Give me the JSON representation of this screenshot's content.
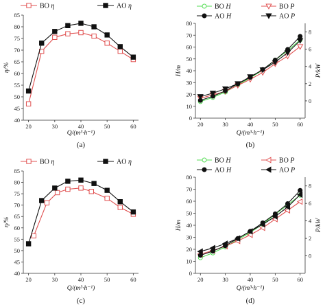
{
  "chart_data": [
    {
      "type": "line",
      "panel": "a",
      "caption": "(a)",
      "xlabel": "Q/(m³·h⁻¹)",
      "ylabel": "η/%",
      "x": [
        20,
        25,
        30,
        35,
        40,
        45,
        50,
        55,
        60
      ],
      "xlim": [
        18,
        62
      ],
      "ylim": [
        40,
        85
      ],
      "xticks": [
        20,
        30,
        40,
        50,
        60
      ],
      "yticks": [
        40,
        45,
        50,
        55,
        60,
        65,
        70,
        75,
        80,
        85
      ],
      "legend": "top",
      "series": [
        {
          "name": "BO η",
          "label_main": "BO",
          "label_sym": "η",
          "color": "#e05050",
          "marker": "square-open",
          "values": [
            47.0,
            69.5,
            75.5,
            77.0,
            77.5,
            76.0,
            73.0,
            69.5,
            66.0
          ]
        },
        {
          "name": "AO η",
          "label_main": "AO",
          "label_sym": "η",
          "color": "#111111",
          "marker": "square-filled",
          "values": [
            52.5,
            73.0,
            78.0,
            80.5,
            81.5,
            80.0,
            76.5,
            71.5,
            67.0
          ]
        }
      ]
    },
    {
      "type": "line",
      "panel": "b",
      "caption": "(b)",
      "xlabel": "Q/(m³·h⁻¹)",
      "ylabel": "H/m",
      "ylabel_right": "P/kW",
      "x": [
        20,
        25,
        30,
        35,
        40,
        45,
        50,
        55,
        60
      ],
      "xlim": [
        18,
        62
      ],
      "ylim": [
        0,
        80
      ],
      "ylim_right": [
        -2,
        9
      ],
      "xticks": [
        20,
        30,
        40,
        50,
        60
      ],
      "yticks": [
        0,
        10,
        20,
        30,
        40,
        50,
        60,
        70,
        80
      ],
      "yticks_right": [
        0,
        2,
        4,
        6,
        8
      ],
      "legend": "top",
      "series": [
        {
          "name": "BO H",
          "label_main": "BO",
          "label_sym": "H",
          "color": "#55dd55",
          "marker": "circle-open",
          "axis": "left",
          "values": [
            14.0,
            17.5,
            22.0,
            28.0,
            34.0,
            40.5,
            49.0,
            57.0,
            66.0
          ]
        },
        {
          "name": "BO P",
          "label_main": "BO",
          "label_sym": "P",
          "color": "#e05050",
          "marker": "triangle-down-open",
          "axis": "right",
          "values": [
            0.3,
            0.7,
            1.1,
            1.8,
            2.5,
            3.3,
            4.3,
            5.2,
            6.3
          ]
        },
        {
          "name": "AO H",
          "label_main": "AO",
          "label_sym": "H",
          "color": "#111111",
          "marker": "circle-filled",
          "axis": "left",
          "values": [
            15.0,
            18.5,
            23.0,
            29.0,
            34.5,
            41.0,
            49.0,
            58.0,
            69.0
          ]
        },
        {
          "name": "AO P",
          "label_main": "AO",
          "label_sym": "P",
          "color": "#111111",
          "marker": "triangle-down-filled",
          "axis": "right",
          "values": [
            0.5,
            0.9,
            1.4,
            2.0,
            2.8,
            3.6,
            4.5,
            5.6,
            7.0
          ]
        }
      ]
    },
    {
      "type": "line",
      "panel": "c",
      "caption": "(c)",
      "xlabel": "Q/(m³·h⁻¹)",
      "ylabel": "η/%",
      "x": [
        20,
        25,
        30,
        35,
        40,
        45,
        50,
        55,
        60
      ],
      "xlim": [
        18,
        62
      ],
      "ylim": [
        40,
        85
      ],
      "xticks": [
        20,
        30,
        40,
        50,
        60
      ],
      "yticks": [
        40,
        45,
        50,
        55,
        60,
        65,
        70,
        75,
        80,
        85
      ],
      "legend": "top",
      "series": [
        {
          "name": "BO η",
          "label_main": "BO",
          "label_sym": "η",
          "color": "#e05050",
          "marker": "square-open",
          "x": [
            22,
            27,
            31,
            35,
            40,
            44,
            50,
            55,
            60
          ],
          "values": [
            56.5,
            71.0,
            75.5,
            77.0,
            77.5,
            76.0,
            73.0,
            69.0,
            66.0
          ]
        },
        {
          "name": "AO η",
          "label_main": "AO",
          "label_sym": "η",
          "color": "#111111",
          "marker": "square-filled",
          "x": [
            20,
            25,
            30,
            35,
            40,
            45,
            50,
            55,
            60
          ],
          "values": [
            53.0,
            72.0,
            77.5,
            80.5,
            81.0,
            79.5,
            76.5,
            71.5,
            67.0
          ]
        }
      ]
    },
    {
      "type": "line",
      "panel": "d",
      "caption": "(d)",
      "xlabel": "Q/(m³·h⁻¹)",
      "ylabel": "H/m",
      "ylabel_right": "P/kW",
      "x": [
        20,
        25,
        30,
        35,
        40,
        45,
        50,
        55,
        60
      ],
      "xlim": [
        18,
        62
      ],
      "ylim": [
        0,
        80
      ],
      "ylim_right": [
        -2,
        9
      ],
      "xticks": [
        20,
        30,
        40,
        50,
        60
      ],
      "yticks": [
        0,
        10,
        20,
        30,
        40,
        50,
        60,
        70,
        80
      ],
      "yticks_right": [
        0,
        2,
        4,
        6,
        8
      ],
      "legend": "top",
      "series": [
        {
          "name": "BO H",
          "label_main": "BO",
          "label_sym": "H",
          "color": "#55dd55",
          "marker": "circle-open",
          "axis": "left",
          "values": [
            13.0,
            17.0,
            22.0,
            28.0,
            34.0,
            41.0,
            49.0,
            57.0,
            65.0
          ]
        },
        {
          "name": "BO P",
          "label_main": "BO",
          "label_sym": "P",
          "color": "#e05050",
          "marker": "triangle-left-open",
          "axis": "right",
          "values": [
            0.2,
            0.6,
            1.1,
            1.7,
            2.4,
            3.2,
            4.2,
            5.2,
            6.2
          ]
        },
        {
          "name": "AO H",
          "label_main": "AO",
          "label_sym": "H",
          "color": "#111111",
          "marker": "circle-filled",
          "axis": "left",
          "values": [
            15.0,
            18.5,
            23.0,
            29.0,
            35.0,
            42.0,
            49.5,
            58.0,
            69.0
          ]
        },
        {
          "name": "AO P",
          "label_main": "AO",
          "label_sym": "P",
          "color": "#111111",
          "marker": "triangle-left-filled",
          "axis": "right",
          "values": [
            0.5,
            0.9,
            1.4,
            2.0,
            2.8,
            3.6,
            4.5,
            5.6,
            7.0
          ]
        }
      ]
    }
  ]
}
